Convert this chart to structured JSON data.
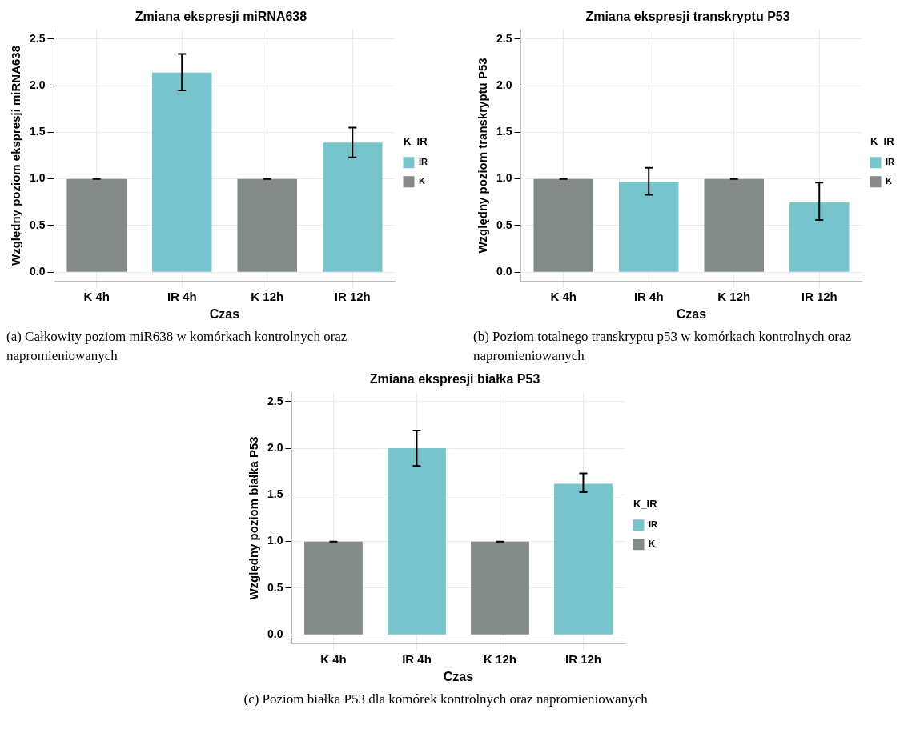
{
  "chart_data": [
    {
      "type": "bar",
      "title": "Zmiana ekspresji miRNA638",
      "xlabel": "Czas",
      "ylabel": "Względny poziom ekspresji miRNA638",
      "legend_title": "K_IR",
      "legend": "right",
      "grid": true,
      "categories": [
        "K 4h",
        "IR 4h",
        "K 12h",
        "IR 12h"
      ],
      "ylim": [
        -0.1,
        2.6
      ],
      "yticks": [
        {
          "value": 0,
          "label": "0.0"
        },
        {
          "value": 0.5,
          "label": "0.5"
        },
        {
          "value": 1,
          "label": "1.0"
        },
        {
          "value": 1.5,
          "label": "1.5"
        },
        {
          "value": 2,
          "label": "2.0"
        },
        {
          "value": 2.5,
          "label": "2.5"
        }
      ],
      "annotations": [
        "(a) Całkowity poziom miR638 w komórkach kontrolnych oraz napromieniowanych"
      ],
      "series": [
        {
          "name": "IR",
          "color": "#78c4cc",
          "values": [
            null,
            2.14,
            null,
            1.39
          ],
          "errors": [
            null,
            [
              1.95,
              2.34
            ],
            null,
            [
              1.23,
              1.55
            ]
          ]
        },
        {
          "name": "K",
          "color": "#838a88",
          "values": [
            1,
            null,
            1,
            null
          ],
          "errors": [
            0,
            null,
            0,
            null
          ]
        }
      ]
    },
    {
      "type": "bar",
      "title": "Zmiana ekspresji transkryptu P53",
      "xlabel": "Czas",
      "ylabel": "Względny poziom transkryptu P53",
      "legend_title": "K_IR",
      "legend": "right",
      "grid": true,
      "categories": [
        "K 4h",
        "IR 4h",
        "K 12h",
        "IR 12h"
      ],
      "ylim": [
        -0.1,
        2.6
      ],
      "yticks": [
        {
          "value": 0,
          "label": "0.0"
        },
        {
          "value": 0.5,
          "label": "0.5"
        },
        {
          "value": 1,
          "label": "1.0"
        },
        {
          "value": 1.5,
          "label": "1.5"
        },
        {
          "value": 2,
          "label": "2.0"
        },
        {
          "value": 2.5,
          "label": "2.5"
        }
      ],
      "annotations": [
        "(b) Poziom totalnego transkryptu p53 w komórkach kontrolnych oraz napromieniowanych"
      ],
      "series": [
        {
          "name": "IR",
          "color": "#78c4cc",
          "values": [
            null,
            0.97,
            null,
            0.75
          ],
          "errors": [
            null,
            [
              0.83,
              1.12
            ],
            null,
            [
              0.56,
              0.96
            ]
          ]
        },
        {
          "name": "K",
          "color": "#838a88",
          "values": [
            1,
            null,
            1,
            null
          ],
          "errors": [
            0,
            null,
            0,
            null
          ]
        }
      ]
    },
    {
      "type": "bar",
      "title": "Zmiana ekspresji białka P53",
      "xlabel": "Czas",
      "ylabel": "Względny poziom białka P53",
      "legend_title": "K_IR",
      "legend": "right",
      "grid": true,
      "categories": [
        "K 4h",
        "IR 4h",
        "K 12h",
        "IR 12h"
      ],
      "ylim": [
        -0.1,
        2.6
      ],
      "yticks": [
        {
          "value": 0,
          "label": "0.0"
        },
        {
          "value": 0.5,
          "label": "0.5"
        },
        {
          "value": 1,
          "label": "1.0"
        },
        {
          "value": 1.5,
          "label": "1.5"
        },
        {
          "value": 2,
          "label": "2.0"
        },
        {
          "value": 2.5,
          "label": "2.5"
        }
      ],
      "annotations": [
        "(c) Poziom białka P53 dla komórek kontrolnych oraz napromieniowanych"
      ],
      "series": [
        {
          "name": "IR",
          "color": "#78c4cc",
          "values": [
            null,
            2.0,
            null,
            1.62
          ],
          "errors": [
            null,
            [
              1.81,
              2.19
            ],
            null,
            [
              1.53,
              1.73
            ]
          ]
        },
        {
          "name": "K",
          "color": "#838a88",
          "values": [
            1,
            null,
            1,
            null
          ],
          "errors": [
            0,
            null,
            0,
            null
          ]
        }
      ]
    }
  ]
}
